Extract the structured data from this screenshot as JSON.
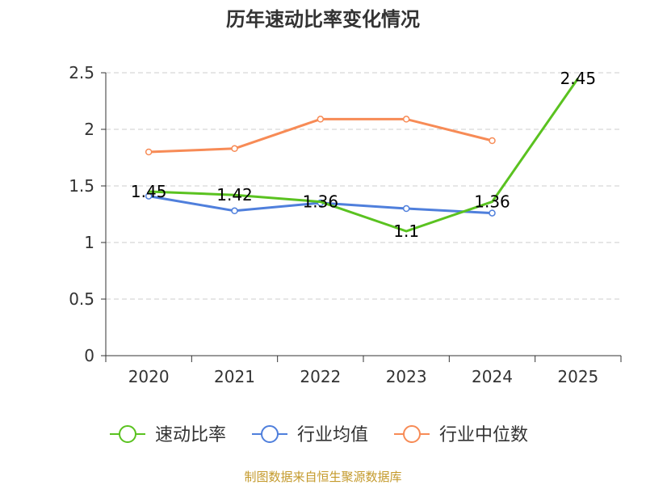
{
  "chart_data": {
    "type": "line",
    "title": "历年速动比率变化情况",
    "categories": [
      "2020",
      "2021",
      "2022",
      "2023",
      "2024",
      "2025"
    ],
    "ylim": [
      0,
      2.5
    ],
    "yticks": [
      0,
      0.5,
      1,
      1.5,
      2,
      2.5
    ],
    "ytick_labels": [
      "0",
      "0.5",
      "1",
      "1.5",
      "2",
      "2.5"
    ],
    "grid": true,
    "legend_position": "bottom",
    "series": [
      {
        "name": "速动比率",
        "color": "#5ac220",
        "values": [
          1.45,
          1.42,
          1.36,
          1.1,
          1.36,
          2.45
        ],
        "labels": [
          "1.45",
          "1.42",
          "1.36",
          "1.1",
          "1.36",
          "2.45"
        ],
        "show_markers": false,
        "show_labels": true
      },
      {
        "name": "行业均值",
        "color": "#4f7fdc",
        "values": [
          1.41,
          1.28,
          1.35,
          1.3,
          1.26,
          null
        ],
        "show_markers": true,
        "show_labels": false
      },
      {
        "name": "行业中位数",
        "color": "#f78b56",
        "values": [
          1.8,
          1.83,
          2.09,
          2.09,
          1.9,
          null
        ],
        "show_markers": true,
        "show_labels": false
      }
    ],
    "source": "制图数据来自恒生聚源数据库",
    "source_color": "#c49a2c"
  }
}
